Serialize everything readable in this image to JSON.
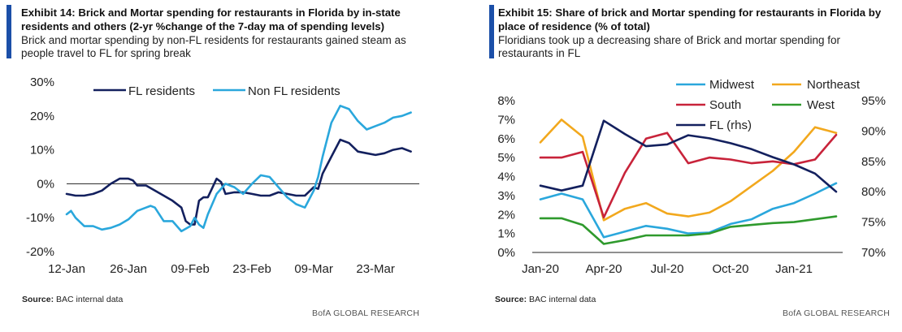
{
  "panels": {
    "left": {
      "title": "Exhibit 14: Brick and Mortar spending for restaurants in Florida by in-state residents and others (2-yr %change of the 7-day ma of spending levels)",
      "subtitle": "Brick and mortar spending by non-FL residents for restaurants gained steam as people travel to FL for spring break",
      "source_label": "Source:",
      "source_text": "BAC internal data",
      "credit": "BofA GLOBAL RESEARCH"
    },
    "right": {
      "title": "Exhibit 15: Share of brick and Mortar spending for restaurants in Florida by place of residence (% of total)",
      "subtitle": "Floridians took up a decreasing share of Brick and mortar spending for restaurants in FL",
      "source_label": "Source:",
      "source_text": "BAC internal data",
      "credit": "BofA GLOBAL RESEARCH"
    }
  },
  "chart_data": [
    {
      "type": "line",
      "title": "Exhibit 14: Brick and Mortar spending for restaurants in Florida by in-state residents and others (2-yr %change of the 7-day ma of spending levels)",
      "ylim": [
        -20,
        30
      ],
      "yticks": [
        "30%",
        "20%",
        "10%",
        "0%",
        "-10%",
        "-20%"
      ],
      "ytick_values": [
        30,
        20,
        10,
        0,
        -10,
        -20
      ],
      "x_range_days": [
        0,
        79
      ],
      "xticks": [
        "12-Jan",
        "26-Jan",
        "09-Feb",
        "23-Feb",
        "09-Mar",
        "23-Mar"
      ],
      "xtick_days": [
        0,
        14,
        28,
        42,
        56,
        70
      ],
      "legend_position": "top",
      "colors": {
        "FL residents": "#13205e",
        "Non FL residents": "#2aa7dc"
      },
      "series": [
        {
          "name": "FL residents",
          "x_days": [
            0,
            2,
            4,
            6,
            8,
            10,
            12,
            14,
            15,
            16,
            18,
            20,
            22,
            24,
            26,
            27,
            28,
            29,
            30,
            31,
            32,
            34,
            35,
            36,
            38,
            40,
            42,
            44,
            46,
            48,
            50,
            52,
            54,
            56,
            57,
            58,
            60,
            62,
            64,
            66,
            68,
            70,
            72,
            74,
            76,
            78
          ],
          "values": [
            -3,
            -3.5,
            -3.5,
            -3,
            -2,
            0,
            1.5,
            1.5,
            1,
            -0.5,
            -0.5,
            -2,
            -3.5,
            -5,
            -7,
            -11,
            -12,
            -12,
            -5,
            -4,
            -4,
            1.5,
            0.5,
            -3,
            -2.5,
            -2.5,
            -3,
            -3.5,
            -3.5,
            -2.5,
            -3,
            -3.5,
            -3.5,
            -1,
            -1.5,
            3,
            8,
            13,
            12,
            9.5,
            9,
            8.5,
            9,
            10,
            10.5,
            9.5
          ]
        },
        {
          "name": "Non FL residents",
          "x_days": [
            0,
            1,
            2,
            4,
            6,
            8,
            10,
            12,
            14,
            16,
            18,
            19,
            20,
            22,
            24,
            26,
            28,
            29,
            30,
            31,
            32,
            34,
            36,
            38,
            40,
            42,
            44,
            46,
            48,
            50,
            52,
            54,
            56,
            57,
            58,
            60,
            62,
            64,
            66,
            68,
            70,
            72,
            74,
            76,
            78
          ],
          "values": [
            -9,
            -8,
            -10,
            -12.5,
            -12.5,
            -13.5,
            -13,
            -12,
            -10.5,
            -8,
            -7,
            -6.5,
            -7,
            -11,
            -11,
            -14,
            -12.5,
            -10,
            -12,
            -13,
            -9,
            -3,
            0,
            -1,
            -3,
            0,
            2.5,
            2,
            -1,
            -4,
            -6,
            -7,
            -2,
            2,
            8,
            18,
            23,
            22,
            18.5,
            16,
            17,
            18,
            19.5,
            20,
            21
          ]
        }
      ]
    },
    {
      "type": "line",
      "title": "Exhibit 15: Share of brick and Mortar spending for restaurants in Florida by place of residence (% of total)",
      "x": [
        "Jan-20",
        "Feb-20",
        "Mar-20",
        "Apr-20",
        "May-20",
        "Jun-20",
        "Jul-20",
        "Aug-20",
        "Sep-20",
        "Oct-20",
        "Nov-20",
        "Dec-20",
        "Jan-21",
        "Feb-21",
        "Mar-21"
      ],
      "xticks": [
        "Jan-20",
        "Apr-20",
        "Jul-20",
        "Oct-20",
        "Jan-21"
      ],
      "xtick_index": [
        0,
        3,
        6,
        9,
        12
      ],
      "ylim": [
        0,
        8
      ],
      "yticks": [
        "8%",
        "7%",
        "6%",
        "5%",
        "4%",
        "3%",
        "2%",
        "1%",
        "0%"
      ],
      "ytick_values": [
        8,
        7,
        6,
        5,
        4,
        3,
        2,
        1,
        0
      ],
      "y2lim": [
        70,
        95
      ],
      "y2ticks": [
        "95%",
        "90%",
        "85%",
        "80%",
        "75%",
        "70%"
      ],
      "y2tick_values": [
        95,
        90,
        85,
        80,
        75,
        70
      ],
      "legend_position": "top",
      "colors": {
        "Midwest": "#2aa7dc",
        "Northeast": "#f2a81d",
        "South": "#c8233a",
        "West": "#2f9a2d",
        "FL (rhs)": "#13205e"
      },
      "series": [
        {
          "name": "Midwest",
          "axis": "left",
          "values": [
            2.8,
            3.1,
            2.8,
            0.8,
            1.1,
            1.4,
            1.25,
            1.0,
            1.05,
            1.5,
            1.75,
            2.3,
            2.6,
            3.1,
            3.65
          ]
        },
        {
          "name": "Northeast",
          "axis": "left",
          "values": [
            5.8,
            7.0,
            6.1,
            1.7,
            2.3,
            2.6,
            2.05,
            1.9,
            2.1,
            2.7,
            3.5,
            4.3,
            5.3,
            6.6,
            6.3
          ]
        },
        {
          "name": "South",
          "axis": "left",
          "values": [
            5.0,
            5.0,
            5.3,
            1.85,
            4.2,
            6.0,
            6.3,
            4.7,
            5.0,
            4.9,
            4.7,
            4.8,
            4.65,
            4.9,
            6.2
          ]
        },
        {
          "name": "West",
          "axis": "left",
          "values": [
            1.8,
            1.8,
            1.45,
            0.45,
            0.65,
            0.9,
            0.9,
            0.9,
            1.0,
            1.35,
            1.45,
            1.55,
            1.6,
            1.75,
            1.9
          ]
        },
        {
          "name": "FL (rhs)",
          "axis": "right",
          "values": [
            81.0,
            80.2,
            81.0,
            91.7,
            89.5,
            87.5,
            87.8,
            89.3,
            88.8,
            88.0,
            87.0,
            85.7,
            84.5,
            83.0,
            80.0
          ]
        }
      ]
    }
  ]
}
